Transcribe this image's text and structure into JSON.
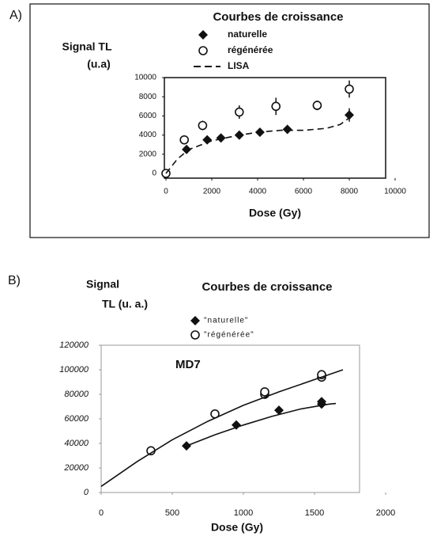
{
  "chart_data": [
    {
      "type": "scatter",
      "panel": "A)",
      "title": "Courbes de croissance",
      "y_label": [
        "Signal TL",
        "(u.a)"
      ],
      "x_label": "Dose (Gy)",
      "xlim": [
        0,
        10000
      ],
      "xticks": [
        0,
        2000,
        4000,
        6000,
        8000,
        10000
      ],
      "ylim": [
        0,
        10000
      ],
      "yticks": [
        0,
        2000,
        4000,
        6000,
        8000,
        10000
      ],
      "series": [
        {
          "name": "naturelle",
          "marker": "diamond",
          "color": "#111111",
          "x": [
            900,
            1800,
            2400,
            3200,
            4100,
            5300,
            8000
          ],
          "values": [
            2500,
            3500,
            3700,
            4000,
            4300,
            4600,
            6100
          ],
          "errors": [
            200,
            200,
            200,
            400,
            300,
            300,
            700
          ]
        },
        {
          "name": "régénérée",
          "marker": "circle",
          "color": "#111111",
          "x": [
            0,
            800,
            1600,
            3200,
            4800,
            6600,
            8000
          ],
          "values": [
            0,
            3500,
            5000,
            6400,
            7000,
            7100,
            8800
          ],
          "errors": [
            200,
            300,
            500,
            700,
            900,
            500,
            900
          ]
        },
        {
          "name": "LISA",
          "marker": "dashed-line",
          "color": "#111111",
          "x": [
            0,
            500,
            1000,
            2000,
            3000,
            4000,
            5000,
            6000,
            7000,
            7600,
            8000
          ],
          "values": [
            0,
            1500,
            2500,
            3400,
            3900,
            4300,
            4500,
            4500,
            4700,
            5100,
            5800
          ]
        }
      ]
    },
    {
      "type": "scatter",
      "panel": "B)",
      "title": "Courbes de croissance",
      "y_label": [
        "Signal",
        "TL (u. a.)"
      ],
      "x_label": "Dose (Gy)",
      "annotation": "MD7",
      "xlim": [
        0,
        2000
      ],
      "xticks": [
        0,
        500,
        1000,
        1500,
        2000
      ],
      "ylim": [
        0,
        120000
      ],
      "yticks": [
        0,
        20000,
        40000,
        60000,
        80000,
        100000,
        120000
      ],
      "series": [
        {
          "name": "\"naturelle\"",
          "marker": "diamond",
          "color": "#111111",
          "x": [
            600,
            950,
            1250,
            1550,
            1550
          ],
          "values": [
            38000,
            55000,
            67000,
            72000,
            74000
          ]
        },
        {
          "name": "\"régénérée\"",
          "marker": "circle",
          "color": "#111111",
          "x": [
            350,
            800,
            1150,
            1150,
            1550,
            1550
          ],
          "values": [
            34000,
            64000,
            80000,
            82000,
            94000,
            96000
          ]
        },
        {
          "marker": "solid-line",
          "color": "#111111",
          "x": [
            0,
            250,
            500,
            750,
            1000,
            1250,
            1500,
            1700
          ],
          "values": [
            5000,
            25000,
            43000,
            58000,
            71000,
            82000,
            92000,
            100000
          ]
        },
        {
          "marker": "solid-line",
          "color": "#111111",
          "x": [
            600,
            800,
            1000,
            1200,
            1400,
            1600,
            1650
          ],
          "values": [
            38000,
            47000,
            55000,
            62000,
            68000,
            72000,
            72500
          ]
        }
      ]
    }
  ]
}
